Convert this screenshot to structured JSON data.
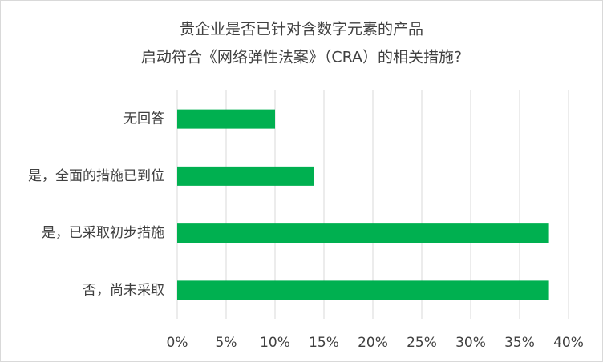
{
  "chart_data": {
    "type": "hbar",
    "title_lines": [
      "贵企业是否已针对含数字元素的产品",
      "启动符合《网络弹性法案》（CRA）的相关措施?"
    ],
    "categories": [
      "无回答",
      "是，全面的措施已到位",
      "是，已采取初步措施",
      "否，尚未采取"
    ],
    "values": [
      10,
      14,
      38,
      38
    ],
    "color": "#00b050",
    "xlim": [
      0,
      40
    ],
    "xticks": [
      {
        "value": 0,
        "label": "0%"
      },
      {
        "value": 5,
        "label": "5%"
      },
      {
        "value": 10,
        "label": "10%"
      },
      {
        "value": 15,
        "label": "15%"
      },
      {
        "value": 20,
        "label": "20%"
      },
      {
        "value": 25,
        "label": "25%"
      },
      {
        "value": 30,
        "label": "30%"
      },
      {
        "value": 35,
        "label": "35%"
      },
      {
        "value": 40,
        "label": "40%"
      }
    ],
    "grid": true
  }
}
